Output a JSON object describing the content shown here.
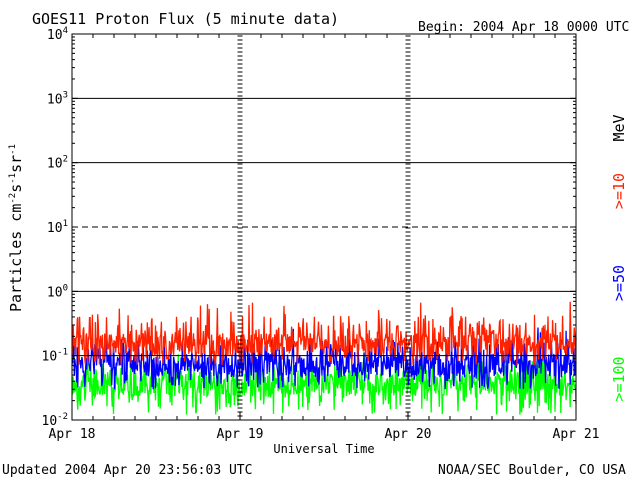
{
  "header": {
    "title": "GOES11 Proton Flux (5 minute data)",
    "begin": "Begin: 2004 Apr 18 0000 UTC"
  },
  "footer": {
    "updated": "Updated 2004 Apr 20 23:56:03 UTC",
    "credit": "NOAA/SEC Boulder, CO USA"
  },
  "chart_data": {
    "type": "line",
    "title": "GOES11 Proton Flux (5 minute data)",
    "subtitle": "Begin: 2004 Apr 18 0000 UTC",
    "xlabel": "Universal Time",
    "ylabel": "Particles cm-2s-1sr-1",
    "y_scale": "log",
    "ylim": [
      0.01,
      10000
    ],
    "xlim": [
      "2004-04-18T00:00Z",
      "2004-04-21T00:00Z"
    ],
    "x_ticks": [
      "Apr 18",
      "Apr 19",
      "Apr 20",
      "Apr 21"
    ],
    "y_ticks": [
      {
        "base": "10",
        "exp": "4",
        "value": 10000
      },
      {
        "base": "10",
        "exp": "3",
        "value": 1000
      },
      {
        "base": "10",
        "exp": "2",
        "value": 100
      },
      {
        "base": "10",
        "exp": "1",
        "value": 10
      },
      {
        "base": "10",
        "exp": "0",
        "value": 1
      },
      {
        "base": "10",
        "exp": "-1",
        "value": 0.1
      },
      {
        "base": "10",
        "exp": "-2",
        "value": 0.01
      }
    ],
    "reference_lines": [
      {
        "value": 10000,
        "style": "solid"
      },
      {
        "value": 1000,
        "style": "solid"
      },
      {
        "value": 100,
        "style": "solid"
      },
      {
        "value": 10,
        "style": "dashed"
      },
      {
        "value": 1,
        "style": "solid"
      },
      {
        "value": 0.1,
        "style": "solid"
      }
    ],
    "energy_unit": "MeV",
    "sampling": "5 minute data, 864 samples per series",
    "series": [
      {
        "name": ">=10",
        "color": "#ff2200",
        "typical": 0.15,
        "min": 0.07,
        "max": 0.7
      },
      {
        "name": ">=50",
        "color": "#0000ff",
        "typical": 0.07,
        "min": 0.03,
        "max": 0.28
      },
      {
        "name": ">=100",
        "color": "#00ff00",
        "typical": 0.035,
        "min": 0.012,
        "max": 0.12
      }
    ]
  }
}
